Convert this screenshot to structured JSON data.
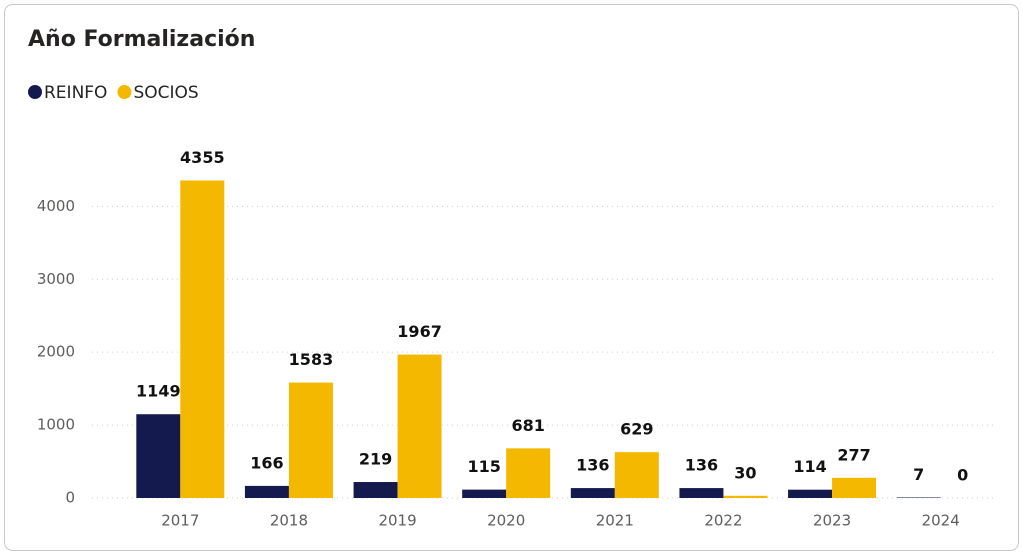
{
  "chart_data": {
    "type": "bar",
    "title": "Año Formalización",
    "categories": [
      "2017",
      "2018",
      "2019",
      "2020",
      "2021",
      "2022",
      "2023",
      "2024"
    ],
    "series": [
      {
        "name": "REINFO",
        "color": "#141a4e",
        "values": [
          1149,
          166,
          219,
          115,
          136,
          136,
          114,
          7
        ]
      },
      {
        "name": "SOCIOS",
        "color": "#f5b800",
        "values": [
          4355,
          1583,
          1967,
          681,
          629,
          30,
          277,
          0
        ]
      }
    ],
    "ylim": [
      0,
      4800
    ],
    "yticks": [
      0,
      1000,
      2000,
      3000,
      4000
    ],
    "grid": true,
    "legend": "top-left"
  }
}
